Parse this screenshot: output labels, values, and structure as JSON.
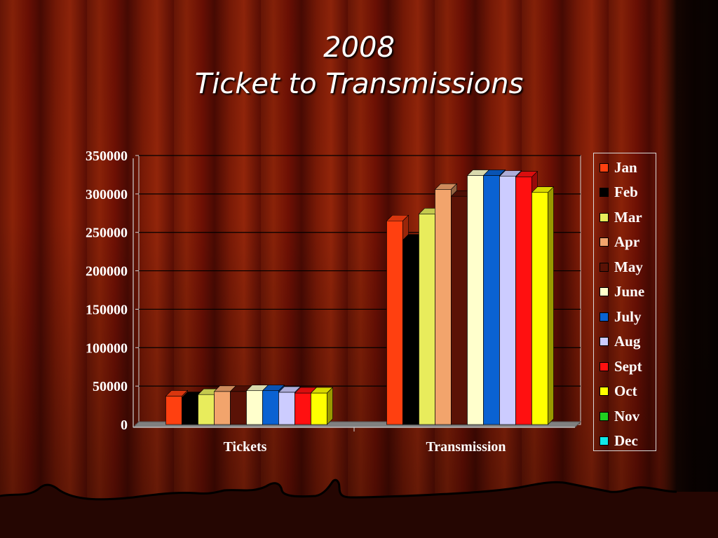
{
  "slide": {
    "title_line1": "2008",
    "title_line2": "Ticket to Transmissions"
  },
  "chart_data": {
    "type": "bar",
    "style": "3d-clustered-column",
    "categories": [
      "Tickets",
      "Transmission"
    ],
    "ylim": [
      0,
      350000
    ],
    "yticks": [
      0,
      50000,
      100000,
      150000,
      200000,
      250000,
      300000,
      350000
    ],
    "ytick_labels": [
      "0",
      "50000",
      "100000",
      "150000",
      "200000",
      "250000",
      "300000",
      "350000"
    ],
    "grid": true,
    "legend_position": "right",
    "series": [
      {
        "name": "Jan",
        "color": "#ff4010",
        "values": [
          37000,
          265000
        ]
      },
      {
        "name": "Feb",
        "color": "#000000",
        "values": [
          35000,
          240000
        ]
      },
      {
        "name": "Mar",
        "color": "#e8ec5c",
        "values": [
          39000,
          274000
        ]
      },
      {
        "name": "Apr",
        "color": "#f2a46c",
        "values": [
          43000,
          306000
        ]
      },
      {
        "name": "May",
        "color": "#5a1206",
        "values": [
          43000,
          297000
        ]
      },
      {
        "name": "June",
        "color": "#ffffcc",
        "values": [
          44000,
          324000
        ]
      },
      {
        "name": "July",
        "color": "#0a62d2",
        "values": [
          44000,
          324000
        ]
      },
      {
        "name": "Aug",
        "color": "#ccccff",
        "values": [
          42000,
          323000
        ]
      },
      {
        "name": "Sept",
        "color": "#ff1010",
        "values": [
          41000,
          322000
        ]
      },
      {
        "name": "Oct",
        "color": "#ffff00",
        "values": [
          41000,
          302000
        ]
      },
      {
        "name": "Nov",
        "color": "#20d020",
        "values": [
          0,
          0
        ]
      },
      {
        "name": "Dec",
        "color": "#10e8e8",
        "values": [
          0,
          0
        ]
      }
    ]
  }
}
